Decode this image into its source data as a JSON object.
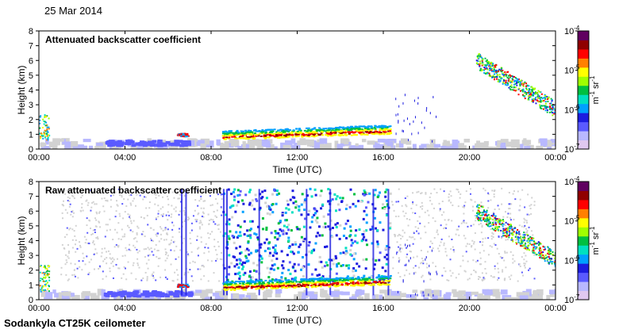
{
  "figure": {
    "date": "25 Mar 2014",
    "instrument": "Sodankyla CT25K ceilometer"
  },
  "colors": {
    "scale": [
      "#e0c8f0",
      "#b8b8ff",
      "#5a5aff",
      "#1c1ce0",
      "#00a0ff",
      "#00e0c0",
      "#00c040",
      "#a0ff00",
      "#ffff00",
      "#ff8000",
      "#ff0000",
      "#900000",
      "#600060"
    ],
    "noise": "#d2d2d2",
    "axis": "#000000"
  },
  "chart_data": [
    {
      "type": "heatmap",
      "title": "Attenuated backscatter coefficient",
      "xlabel": "Time (UTC)",
      "ylabel": "Height (km)",
      "xticks": [
        "00:00",
        "04:00",
        "08:00",
        "12:00",
        "16:00",
        "20:00",
        "00:00"
      ],
      "xlim_hours": [
        0,
        24
      ],
      "yticks": [
        "0",
        "1",
        "2",
        "3",
        "4",
        "5",
        "6",
        "7",
        "8"
      ],
      "ylim_km": [
        0,
        8
      ],
      "colorbar": {
        "scale": "log",
        "range": [
          1e-07,
          0.0001
        ],
        "ticks": [
          "10",
          "10",
          "10",
          "10"
        ],
        "tick_exponents": [
          "-7",
          "-6",
          "-5",
          "-4"
        ],
        "unit_label": "m",
        "unit_exp1": "-1",
        "unit_sr": "sr",
        "unit_exp2": "-1"
      },
      "features": [
        {
          "name": "boundary layer cloud",
          "start_h": 6.5,
          "end_h": 16.3,
          "height_km": [
            0.8,
            1.5
          ],
          "level": 11
        },
        {
          "name": "high cloud",
          "start_h": 20.2,
          "end_h": 24,
          "height_km": [
            3.0,
            6.8
          ],
          "level": 7
        },
        {
          "name": "low signal at start",
          "start_h": 0,
          "end_h": 0.5,
          "height_km": [
            0.5,
            2.5
          ],
          "level": 6
        }
      ]
    },
    {
      "type": "heatmap",
      "title": "Raw attenuated backscatter coefficient",
      "xlabel": "Time (UTC)",
      "ylabel": "Height (km)",
      "xticks": [
        "00:00",
        "04:00",
        "08:00",
        "12:00",
        "16:00",
        "20:00",
        "00:00"
      ],
      "xlim_hours": [
        0,
        24
      ],
      "yticks": [
        "0",
        "1",
        "2",
        "3",
        "4",
        "5",
        "6",
        "7",
        "8"
      ],
      "ylim_km": [
        0,
        8
      ],
      "colorbar": {
        "scale": "log",
        "range": [
          1e-07,
          0.0001
        ],
        "ticks": [
          "10",
          "10",
          "10",
          "10"
        ],
        "tick_exponents": [
          "-7",
          "-6",
          "-5",
          "-4"
        ],
        "unit_label": "m",
        "unit_exp1": "-1",
        "unit_sr": "sr",
        "unit_exp2": "-1"
      },
      "features": [
        {
          "name": "boundary layer cloud",
          "start_h": 6.5,
          "end_h": 16.3,
          "height_km": [
            0.8,
            1.5
          ],
          "level": 11
        },
        {
          "name": "high cloud",
          "start_h": 20.2,
          "end_h": 24,
          "height_km": [
            3.0,
            6.8
          ],
          "level": 7
        },
        {
          "name": "daytime noise",
          "start_h": 8.5,
          "end_h": 16.3,
          "height_km": [
            1.5,
            7.5
          ],
          "level": 4
        }
      ]
    }
  ]
}
